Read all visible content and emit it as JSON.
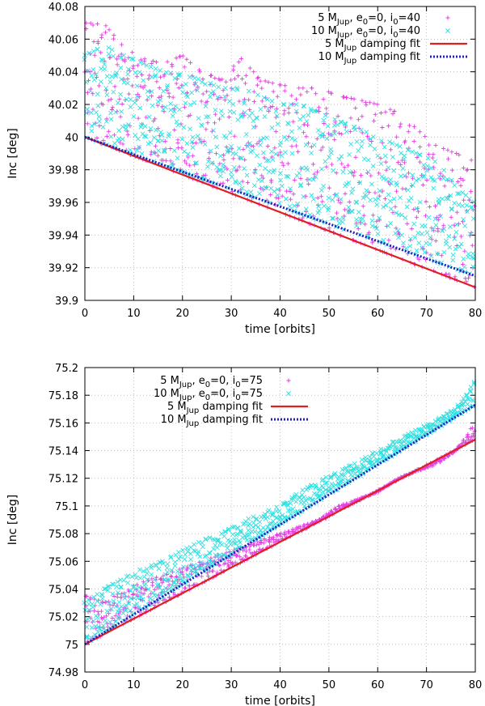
{
  "chart_data": [
    {
      "type": "scatter",
      "title": "",
      "xlabel": "time [orbits]",
      "ylabel": "Inc [deg]",
      "xlim": [
        0,
        80
      ],
      "ylim": [
        39.9,
        40.08
      ],
      "xticks": [
        "0",
        "10",
        "20",
        "30",
        "40",
        "50",
        "60",
        "70",
        "80"
      ],
      "yticks": [
        "39.9",
        "39.92",
        "39.94",
        "39.96",
        "39.98",
        "40",
        "40.02",
        "40.04",
        "40.06",
        "40.08"
      ],
      "legend_position": "top-right",
      "series": [
        {
          "name": "5 M_Jup, e0=0, i0=40",
          "legend_parts": [
            "5 M",
            "Jup",
            ", e",
            "0",
            "=0, i",
            "0",
            "=40"
          ],
          "kind": "scatter",
          "marker": "+",
          "color": "#e040e0",
          "x": [
            0,
            4,
            8,
            12,
            16,
            20,
            24,
            28,
            32,
            36,
            40,
            44,
            48,
            52,
            56,
            60,
            64,
            68,
            72,
            76,
            80
          ],
          "y": [
            40.07,
            40.069,
            40.055,
            40.048,
            40.045,
            40.05,
            40.04,
            40.035,
            40.048,
            40.035,
            40.032,
            40.03,
            40.03,
            40.025,
            40.023,
            40.02,
            40.015,
            40.005,
            39.995,
            39.99,
            39.985
          ]
        },
        {
          "name": "10 M_Jup, e0=0, i0=40",
          "legend_parts": [
            "10 M",
            "Jup",
            ", e",
            "0",
            "=0, i",
            "0",
            "=40"
          ],
          "kind": "scatter",
          "marker": "x",
          "color": "#30e0e0",
          "x": [
            0,
            4,
            8,
            12,
            16,
            20,
            24,
            28,
            32,
            36,
            40,
            44,
            48,
            52,
            56,
            60,
            64,
            68,
            72,
            76,
            80
          ],
          "y": [
            40.05,
            40.056,
            40.05,
            40.045,
            40.04,
            40.038,
            40.035,
            40.03,
            40.03,
            40.025,
            40.02,
            40.02,
            40.015,
            40.01,
            40.005,
            40.0,
            39.995,
            39.99,
            39.985,
            39.97,
            39.96
          ]
        },
        {
          "name": "5 M_Jup damping fit",
          "legend_parts": [
            "5 M",
            "Jup",
            " damping fit"
          ],
          "kind": "line",
          "style": "solid",
          "color": "#e02020",
          "x": [
            0,
            80
          ],
          "y": [
            40.0,
            39.908
          ]
        },
        {
          "name": "10 M_Jup damping fit",
          "legend_parts": [
            "10 M",
            "Jup",
            " damping fit"
          ],
          "kind": "line",
          "style": "dotted",
          "color": "#2020c0",
          "x": [
            0,
            80
          ],
          "y": [
            40.0,
            39.915
          ]
        }
      ]
    },
    {
      "type": "scatter",
      "title": "",
      "xlabel": "time [orbits]",
      "ylabel": "Inc [deg]",
      "xlim": [
        0,
        80
      ],
      "ylim": [
        74.98,
        75.2
      ],
      "xticks": [
        "0",
        "10",
        "20",
        "30",
        "40",
        "50",
        "60",
        "70",
        "80"
      ],
      "yticks": [
        "74.98",
        "75",
        "75.02",
        "75.04",
        "75.06",
        "75.08",
        "75.1",
        "75.12",
        "75.14",
        "75.16",
        "75.18",
        "75.2"
      ],
      "legend_position": "top-left",
      "series": [
        {
          "name": "5 M_Jup, e0=0, i0=75",
          "legend_parts": [
            "5 M",
            "Jup",
            ", e",
            "0",
            "=0, i",
            "0",
            "=75"
          ],
          "kind": "scatter",
          "marker": "+",
          "color": "#e040e0",
          "x": [
            0,
            4,
            8,
            12,
            16,
            20,
            24,
            28,
            32,
            36,
            40,
            44,
            48,
            52,
            56,
            60,
            64,
            68,
            72,
            76,
            80
          ],
          "y": [
            75.035,
            75.03,
            75.04,
            75.045,
            75.05,
            75.055,
            75.06,
            75.065,
            75.07,
            75.075,
            75.08,
            75.085,
            75.09,
            75.1,
            75.105,
            75.11,
            75.12,
            75.125,
            75.13,
            75.14,
            75.16
          ]
        },
        {
          "name": "10 M_Jup, e0=0, i0=75",
          "legend_parts": [
            "10 M",
            "Jup",
            ", e",
            "0",
            "=0, i",
            "0",
            "=75"
          ],
          "kind": "scatter",
          "marker": "x",
          "color": "#30e0e0",
          "x": [
            0,
            4,
            8,
            12,
            16,
            20,
            24,
            28,
            32,
            36,
            40,
            44,
            48,
            52,
            56,
            60,
            64,
            68,
            72,
            76,
            80
          ],
          "y": [
            75.03,
            75.04,
            75.048,
            75.055,
            75.06,
            75.068,
            75.075,
            75.08,
            75.088,
            75.095,
            75.1,
            75.11,
            75.118,
            75.125,
            75.132,
            75.14,
            75.148,
            75.155,
            75.162,
            75.17,
            75.19
          ]
        },
        {
          "name": "5 M_Jup damping fit",
          "legend_parts": [
            "5 M",
            "Jup",
            " damping fit"
          ],
          "kind": "line",
          "style": "solid",
          "color": "#e02020",
          "x": [
            0,
            80
          ],
          "y": [
            75.0,
            75.148
          ]
        },
        {
          "name": "10 M_Jup damping fit",
          "legend_parts": [
            "10 M",
            "Jup",
            " damping fit"
          ],
          "kind": "line",
          "style": "dotted",
          "color": "#2020c0",
          "x": [
            0,
            80
          ],
          "y": [
            75.0,
            75.173
          ]
        }
      ]
    }
  ]
}
